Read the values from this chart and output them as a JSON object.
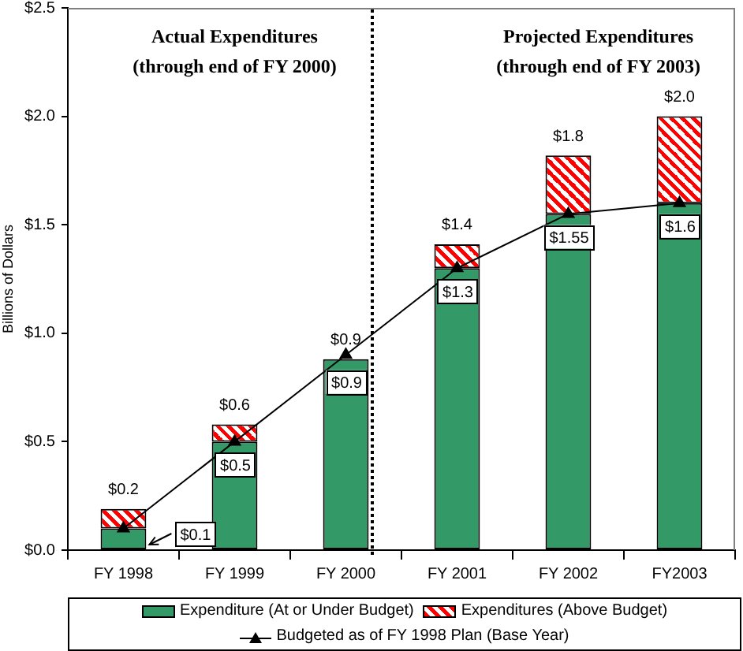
{
  "chart_data": {
    "type": "bar",
    "stacked": true,
    "categories": [
      "FY 1998",
      "FY 1999",
      "FY 2000",
      "FY 2001",
      "FY 2002",
      "FY2003"
    ],
    "ylabel": "Billions of Dollars",
    "ylim": [
      0,
      2.5
    ],
    "yticks": [
      {
        "value": 0,
        "label": "$0.0"
      },
      {
        "value": 0.5,
        "label": "$0.5"
      },
      {
        "value": 1,
        "label": "$1.0"
      },
      {
        "value": 1.5,
        "label": "$1.5"
      },
      {
        "value": 2,
        "label": "$2.0"
      },
      {
        "value": 2.5,
        "label": "$2.5"
      }
    ],
    "series": [
      {
        "name": "Expenditure (At or Under Budget)",
        "color": "#339966",
        "values": [
          0.1,
          0.5,
          0.88,
          1.3,
          1.55,
          1.6
        ],
        "value_labels": [
          "$0.1",
          "$0.5",
          "$0.9",
          "$1.3",
          "$1.55",
          "$1.6"
        ]
      },
      {
        "name": "Expenditures (Above Budget)",
        "color": "#ff0000",
        "values": [
          0.09,
          0.08,
          null,
          0.11,
          0.27,
          0.4
        ]
      },
      {
        "name": "Budgeted as of FY 1998 Plan (Base Year)",
        "type": "line",
        "color": "#000000",
        "values": [
          0.1,
          0.5,
          0.9,
          1.3,
          1.55,
          1.6
        ]
      }
    ],
    "totals": [
      "$0.2",
      "$0.6",
      "$0.9",
      "$1.4",
      "$1.8",
      "$2.0"
    ],
    "annotations": [
      "Actual Expenditures\n(through end of FY 2000)",
      "Projected Expenditures\n(through end of FY 2003)"
    ],
    "ref_lines": [
      {
        "axis": "x",
        "value": "FY 2000",
        "line_style": "dotted",
        "color": "#000000"
      }
    ],
    "legend": "bottom",
    "grid": false,
    "marker": "triangle"
  }
}
